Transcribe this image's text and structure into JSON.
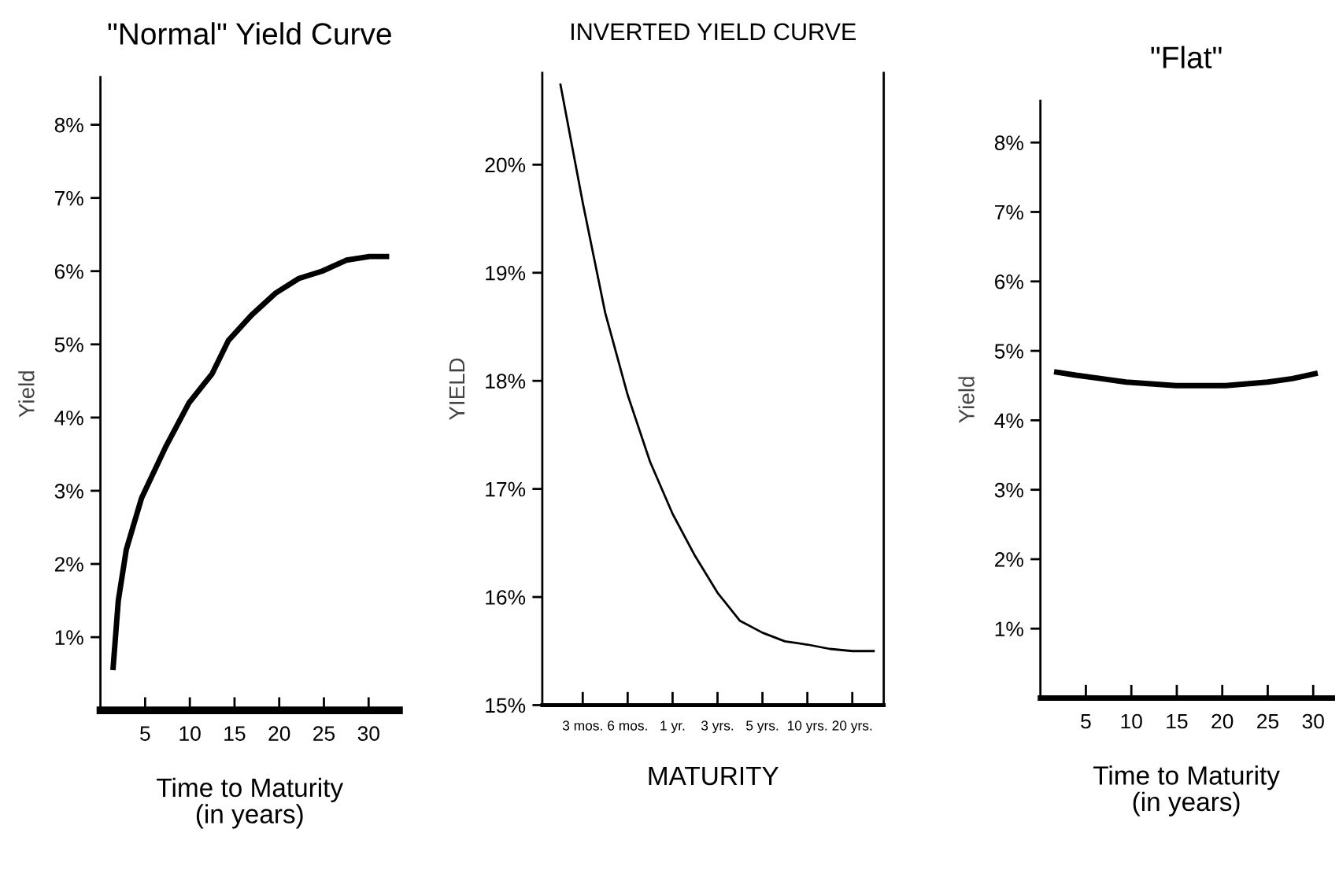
{
  "chart_data": [
    {
      "type": "line",
      "title": "\"Normal\" Yield Curve",
      "xlabel": "Time to Maturity\n(in years)",
      "ylabel": "Yield",
      "xlim": [
        0,
        33.4
      ],
      "ylim": [
        0,
        8.65
      ],
      "xticks": [
        5,
        10,
        15,
        20,
        25,
        30
      ],
      "yticks": [
        {
          "value": 1,
          "label": "1%"
        },
        {
          "value": 2,
          "label": "2%"
        },
        {
          "value": 3,
          "label": "3%"
        },
        {
          "value": 4,
          "label": "4%"
        },
        {
          "value": 5,
          "label": "5%"
        },
        {
          "value": 6,
          "label": "6%"
        },
        {
          "value": 7,
          "label": "7%"
        },
        {
          "value": 8,
          "label": "8%"
        }
      ],
      "series": [
        {
          "color": "#000000",
          "x": [
            1.4,
            2.0,
            2.9,
            4.6,
            7.3,
            9.9,
            12.5,
            14.3,
            16.9,
            19.6,
            22.2,
            24.8,
            27.5,
            30.1,
            32.3
          ],
          "values": [
            0.55,
            1.5,
            2.2,
            2.9,
            3.6,
            4.2,
            4.6,
            5.05,
            5.4,
            5.7,
            5.9,
            6.0,
            6.15,
            6.2,
            6.2
          ]
        }
      ]
    },
    {
      "type": "line",
      "title": "INVERTED YIELD CURVE",
      "xlabel": "MATURITY",
      "ylabel": "YIELD",
      "categories": [
        null,
        "3 mos.",
        null,
        "6 mos.",
        null,
        "1 yr.",
        null,
        "3 yrs.",
        null,
        "5 yrs.",
        null,
        "10 yrs.",
        null,
        "20 yrs.",
        null
      ],
      "ylim": [
        15,
        20.85
      ],
      "yticks": [
        {
          "value": 15,
          "label": "15%"
        },
        {
          "value": 16,
          "label": "16%"
        },
        {
          "value": 17,
          "label": "17%"
        },
        {
          "value": 18,
          "label": "18%"
        },
        {
          "value": 19,
          "label": "19%"
        },
        {
          "value": 20,
          "label": "20%"
        }
      ],
      "series": [
        {
          "color": "#000000",
          "values": [
            20.75,
            19.65,
            18.63,
            17.87,
            17.25,
            16.77,
            16.38,
            16.04,
            15.78,
            15.67,
            15.59,
            15.56,
            15.52,
            15.5,
            15.5
          ]
        }
      ]
    },
    {
      "type": "line",
      "title": "\"Flat\"",
      "xlabel": "Time to Maturity\n(in years)",
      "ylabel": "Yield",
      "xlim": [
        0,
        32.1
      ],
      "ylim": [
        0,
        8.6
      ],
      "xticks": [
        5,
        10,
        15,
        20,
        25,
        30
      ],
      "yticks": [
        {
          "value": 1,
          "label": "1%"
        },
        {
          "value": 2,
          "label": "2%"
        },
        {
          "value": 3,
          "label": "3%"
        },
        {
          "value": 4,
          "label": "4%"
        },
        {
          "value": 5,
          "label": "5%"
        },
        {
          "value": 6,
          "label": "6%"
        },
        {
          "value": 7,
          "label": "7%"
        },
        {
          "value": 8,
          "label": "8%"
        }
      ],
      "series": [
        {
          "color": "#000000",
          "x": [
            1.5,
            3.9,
            6.7,
            9.4,
            14.9,
            20.4,
            25.0,
            27.7,
            30.5
          ],
          "values": [
            4.7,
            4.65,
            4.6,
            4.55,
            4.5,
            4.5,
            4.55,
            4.6,
            4.68
          ]
        }
      ]
    }
  ]
}
